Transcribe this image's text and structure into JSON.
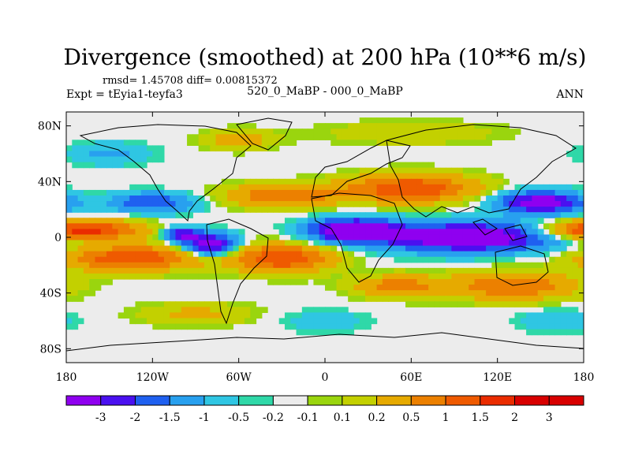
{
  "chart_data": {
    "type": "heatmap",
    "title": "Divergence (smoothed) at 200 hPa (10**6 m/s)",
    "stats": "rmsd= 1.45708 diff= 0.00815372",
    "experiment": "Expt = tEyia1-teyfa3",
    "subtitle": "520_0_MaBP - 000_0_MaBP",
    "season": "ANN",
    "xlim": [
      -180,
      180
    ],
    "ylim": [
      -90,
      90
    ],
    "x_ticks": [
      {
        "value": -180,
        "label": "180"
      },
      {
        "value": -120,
        "label": "120W"
      },
      {
        "value": -60,
        "label": "60W"
      },
      {
        "value": 0,
        "label": "0"
      },
      {
        "value": 60,
        "label": "60E"
      },
      {
        "value": 120,
        "label": "120E"
      },
      {
        "value": 180,
        "label": "180"
      }
    ],
    "y_ticks": [
      {
        "value": 80,
        "label": "80N"
      },
      {
        "value": 40,
        "label": "40N"
      },
      {
        "value": 0,
        "label": "0"
      },
      {
        "value": -40,
        "label": "40S"
      },
      {
        "value": -80,
        "label": "80S"
      }
    ],
    "colorbar": {
      "colors": [
        "#8f00f0",
        "#4a10f0",
        "#1f60f0",
        "#28a0ef",
        "#2fc6e3",
        "#2fd8a8",
        "#ececec",
        "#9ad50e",
        "#c3d000",
        "#e6aa00",
        "#ec8000",
        "#ef5a00",
        "#ea2c00",
        "#d80000"
      ],
      "labels": [
        "-3",
        "-2",
        "-1.5",
        "-1",
        "-0.5",
        "-0.2",
        "-0.1",
        "0.1",
        "0.2",
        "0.5",
        "1",
        "1.5",
        "2",
        "3"
      ]
    },
    "field_blobs": [
      {
        "lon": -170,
        "lat": 5,
        "rlon": 40,
        "rlat": 7,
        "v": 2.5
      },
      {
        "lon": -135,
        "lat": -15,
        "rlon": 45,
        "rlat": 9,
        "v": 2.0
      },
      {
        "lon": -80,
        "lat": -5,
        "rlon": 18,
        "rlat": 8,
        "v": -2.5
      },
      {
        "lon": -100,
        "lat": 2,
        "rlon": 12,
        "rlat": 5,
        "v": -2.0
      },
      {
        "lon": -30,
        "lat": -15,
        "rlon": 35,
        "rlat": 10,
        "v": 2.0
      },
      {
        "lon": 20,
        "lat": 5,
        "rlon": 30,
        "rlat": 8,
        "v": -3.0
      },
      {
        "lon": 100,
        "lat": 0,
        "rlon": 60,
        "rlat": 10,
        "v": -3.0
      },
      {
        "lon": 150,
        "lat": 25,
        "rlon": 30,
        "rlat": 8,
        "v": -2.5
      },
      {
        "lon": 60,
        "lat": 35,
        "rlon": 45,
        "rlat": 10,
        "v": 2.0
      },
      {
        "lon": -30,
        "lat": 30,
        "rlon": 40,
        "rlat": 8,
        "v": 1.5
      },
      {
        "lon": -120,
        "lat": 25,
        "rlon": 30,
        "rlat": 7,
        "v": -1.5
      },
      {
        "lon": 130,
        "lat": -35,
        "rlon": 45,
        "rlat": 10,
        "v": 1.5
      },
      {
        "lon": 50,
        "lat": -35,
        "rlon": 30,
        "rlat": 8,
        "v": 1.2
      },
      {
        "lon": -90,
        "lat": -55,
        "rlon": 40,
        "rlat": 8,
        "v": 0.6
      },
      {
        "lon": 60,
        "lat": 75,
        "rlon": 60,
        "rlat": 8,
        "v": 0.5
      },
      {
        "lon": -150,
        "lat": 60,
        "rlon": 30,
        "rlat": 8,
        "v": -0.6
      },
      {
        "lon": 160,
        "lat": -60,
        "rlon": 25,
        "rlat": 8,
        "v": -0.5
      },
      {
        "lon": -60,
        "lat": 70,
        "rlon": 25,
        "rlat": 7,
        "v": 0.8
      },
      {
        "lon": 0,
        "lat": -60,
        "rlon": 30,
        "rlat": 8,
        "v": -0.4
      }
    ]
  }
}
